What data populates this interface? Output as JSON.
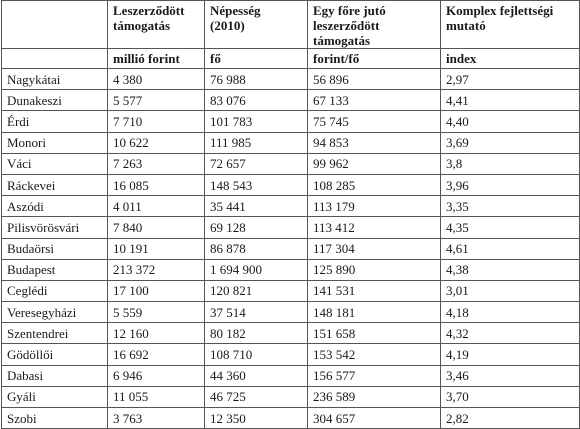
{
  "table": {
    "header": [
      "Leszerződött\n támogatás",
      "Népesség\n(2010)",
      "Egy főre jutó\nleszerződött támogatás",
      "Komplex fejlettségi\nmutató"
    ],
    "units": [
      "millió forint",
      "fő",
      "forint/fő",
      "index"
    ],
    "rows": [
      [
        "Nagykátai",
        "4 380",
        "76 988",
        "56 896",
        "2,97"
      ],
      [
        "Dunakeszi",
        "5 577",
        "83 076",
        "67 133",
        "4,41"
      ],
      [
        "Érdi",
        "7 710",
        "101 783",
        "75 745",
        "4,40"
      ],
      [
        "Monori",
        "10 622",
        "111 985",
        "94 853",
        "3,69"
      ],
      [
        "Váci",
        "7 263",
        "72 657",
        "99 962",
        "3,8"
      ],
      [
        "Ráckevei",
        "16 085",
        "148 543",
        "108 285",
        "3,96"
      ],
      [
        "Aszódi",
        "4 011",
        "35 441",
        "113 179",
        "3,35"
      ],
      [
        "Pilisvörösvári",
        "7 840",
        "69 128",
        "113 412",
        "4,35"
      ],
      [
        "Budaörsi",
        "10 191",
        "86 878",
        "117 304",
        "4,61"
      ],
      [
        "Budapest",
        "213 372",
        "1 694 900",
        "125 890",
        "4,38"
      ],
      [
        "Ceglédi",
        "17 100",
        "120 821",
        "141 531",
        "3,01"
      ],
      [
        "Veresegyházi",
        "5 559",
        "37 514",
        "148 181",
        "4,18"
      ],
      [
        "Szentendrei",
        "12 160",
        "80 182",
        "151 658",
        "4,32"
      ],
      [
        "Gödöllői",
        "16 692",
        "108 710",
        "153 542",
        "4,19"
      ],
      [
        "Dabasi",
        "6 946",
        "44 360",
        "156 577",
        "3,46"
      ],
      [
        "Gyáli",
        "11 055",
        "46 725",
        "236 589",
        "3,70"
      ],
      [
        "Szobi",
        "3 763",
        "12 350",
        "304 657",
        "2,82"
      ]
    ]
  }
}
